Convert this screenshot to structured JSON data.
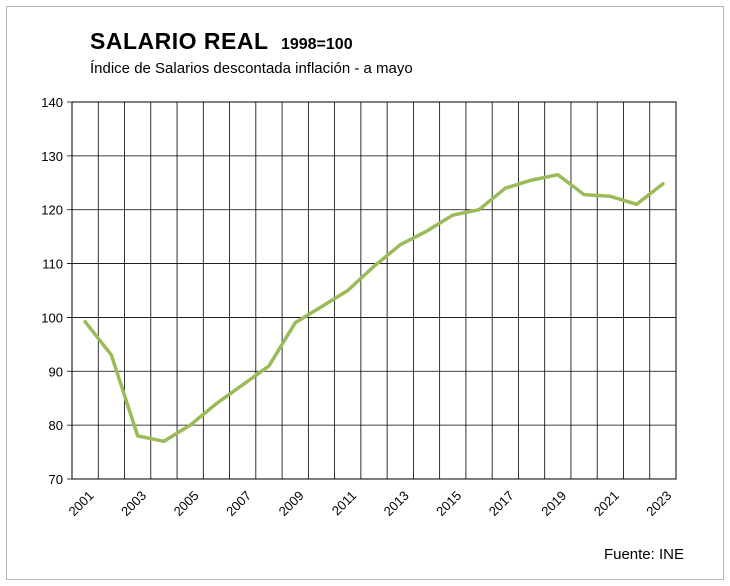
{
  "chart_data": {
    "type": "line",
    "title": "SALARIO  REAL",
    "title_suffix": "1998=100",
    "subtitle": "Índice de Salarios descontada inflación - a mayo",
    "source": "Fuente: INE",
    "xlabel": "",
    "ylabel": "",
    "ylim": [
      70,
      140
    ],
    "yticks": [
      70,
      80,
      90,
      100,
      110,
      120,
      130,
      140
    ],
    "xlim": [
      2000.5,
      2023.5
    ],
    "xticks": [
      "2001",
      "2003",
      "2005",
      "2007",
      "2009",
      "2011",
      "2013",
      "2015",
      "2017",
      "2019",
      "2021",
      "2023"
    ],
    "grid": true,
    "series": [
      {
        "color": "#9bbb59",
        "x": [
          2001,
          2002,
          2003,
          2004,
          2005,
          2006,
          2007,
          2008,
          2009,
          2010,
          2011,
          2012,
          2013,
          2014,
          2015,
          2016,
          2017,
          2018,
          2019,
          2020,
          2021,
          2022,
          2023
        ],
        "values": [
          99.2,
          93.0,
          78.0,
          77.0,
          80.0,
          84.0,
          87.5,
          91.0,
          99.0,
          102.0,
          105.0,
          109.5,
          113.5,
          116.0,
          119.0,
          120.0,
          124.0,
          125.5,
          126.5,
          122.8,
          122.5,
          121.0,
          124.8
        ]
      }
    ]
  }
}
